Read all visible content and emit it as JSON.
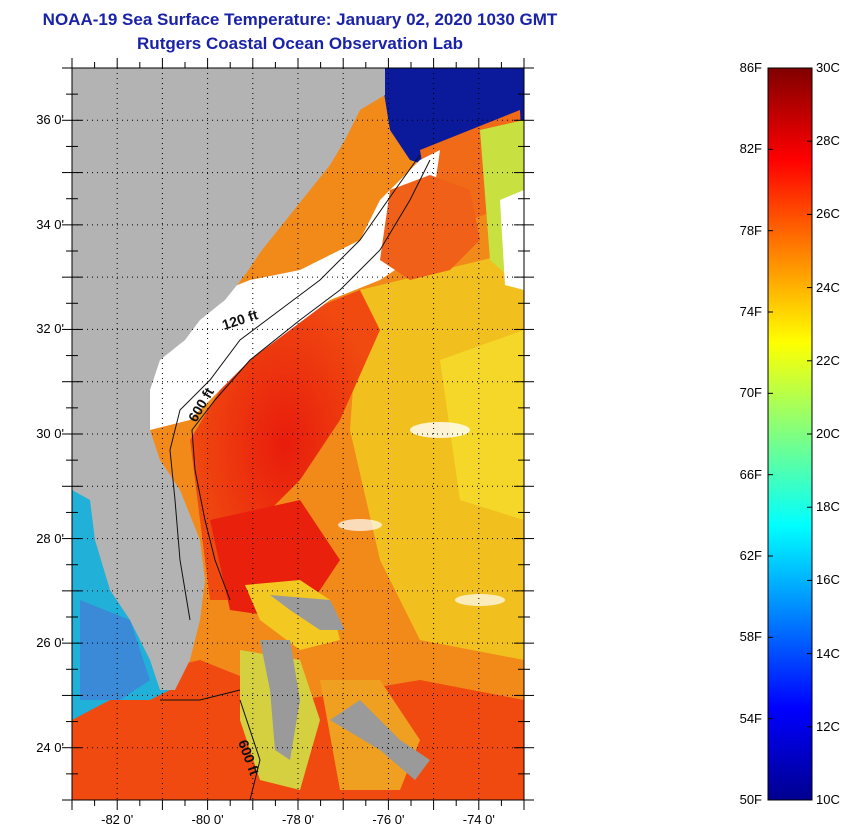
{
  "title": {
    "line1": "NOAA-19 Sea Surface Temperature:  January 02, 2020 1030 GMT",
    "line2": "Rutgers Coastal Ocean Observation Lab"
  },
  "map": {
    "lat_range": [
      23,
      37
    ],
    "lon_range": [
      -83,
      -73
    ],
    "lat_ticks": [
      {
        "value": 24,
        "label": "24 0'"
      },
      {
        "value": 26,
        "label": "26 0'"
      },
      {
        "value": 28,
        "label": "28 0'"
      },
      {
        "value": 30,
        "label": "30 0'"
      },
      {
        "value": 32,
        "label": "32 0'"
      },
      {
        "value": 34,
        "label": "34 0'"
      },
      {
        "value": 36,
        "label": "36 0'"
      }
    ],
    "lon_ticks": [
      {
        "value": -82,
        "label": "-82 0'"
      },
      {
        "value": -80,
        "label": "-80 0'"
      },
      {
        "value": -78,
        "label": "-78 0'"
      },
      {
        "value": -76,
        "label": "-76 0'"
      },
      {
        "value": -74,
        "label": "-74 0'"
      }
    ],
    "contour_labels": {
      "c120": "120 ft",
      "c600a": "600 ft",
      "c600b": "600 ft"
    },
    "colors": {
      "land": "#b3b3b3",
      "cloud": "#ffffff",
      "warm": "#f04a10",
      "hot": "#e81c0c",
      "mild": "#f5c21c",
      "cool": "#20b8d8",
      "cold": "#102080"
    }
  },
  "colorbar": {
    "fahrenheit": [
      "86F",
      "82F",
      "78F",
      "74F",
      "70F",
      "66F",
      "62F",
      "58F",
      "54F",
      "50F"
    ],
    "celsius": [
      "30C",
      "28C",
      "26C",
      "24C",
      "22C",
      "20C",
      "18C",
      "16C",
      "14C",
      "12C",
      "10C"
    ],
    "range_c": [
      10,
      30
    ],
    "stops": [
      "#00008f",
      "#0000ff",
      "#0080ff",
      "#00ffff",
      "#80ff80",
      "#ffff00",
      "#ff8000",
      "#ff0000",
      "#800000"
    ]
  }
}
